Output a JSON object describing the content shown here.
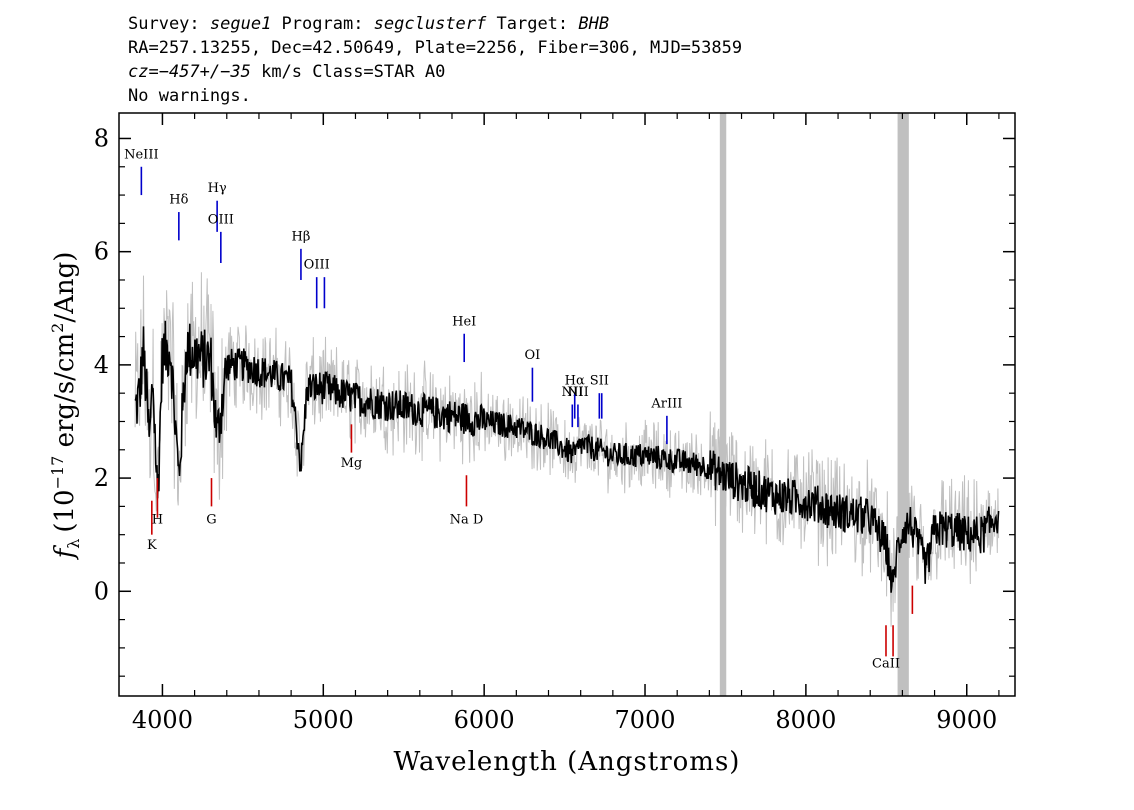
{
  "header": {
    "line1": {
      "survey_label": "Survey: ",
      "survey": "segue1",
      "program_label": " Program: ",
      "program": "segclusterf",
      "target_label": " Target: ",
      "target": "BHB"
    },
    "line2": "RA=257.13255, Dec=42.50649, Plate=2256, Fiber=306, MJD=53859",
    "line3": {
      "cz_label": "cz=",
      "cz": "−457+/−35",
      "rest": " km/s Class=STAR A0"
    },
    "line4": "No warnings."
  },
  "chart_data": {
    "type": "line",
    "xlabel": "Wavelength (Angstroms)",
    "ylabel_parts": {
      "f": "f",
      "sub": "λ",
      "pre": "(10",
      "exp1": "−17",
      "mid": " erg/s/cm",
      "exp2": "2",
      "post": "/Ang)"
    },
    "xlim": [
      3730,
      9300
    ],
    "ylim": [
      -1.85,
      8.45
    ],
    "xticks": [
      4000,
      5000,
      6000,
      7000,
      8000,
      9000
    ],
    "yticks": [
      0,
      2,
      4,
      6,
      8
    ],
    "colors": {
      "flux": "#000000",
      "error": "#c0c0c0",
      "emission": "#0000cc",
      "absorption": "#cc0000",
      "masked": "#c0c0c0"
    },
    "masked_regions": [
      [
        7465,
        7505
      ],
      [
        8570,
        8640
      ]
    ],
    "series": [
      {
        "x": [
          3830,
          3860,
          3880,
          3900,
          3920,
          3940,
          3970,
          4000,
          4050,
          4101,
          4150,
          4200,
          4250,
          4300,
          4340,
          4400,
          4500,
          4600,
          4700,
          4800,
          4861,
          4900,
          5000,
          5100,
          5200,
          5400,
          5600,
          5800,
          6000,
          6200,
          6400,
          6563,
          6600,
          6700,
          6800,
          7000,
          7200,
          7400,
          7450,
          7600,
          7800,
          8000,
          8200,
          8400,
          8500,
          8542,
          8560,
          8600,
          8650,
          8700,
          8750,
          8800,
          8900,
          9000,
          9100,
          9200
        ],
        "y": [
          3.2,
          3.5,
          4.3,
          3.5,
          2.6,
          3.8,
          1.6,
          4.2,
          4.3,
          2.0,
          4.3,
          4.2,
          4.1,
          4.1,
          2.7,
          4.0,
          4.0,
          3.9,
          3.8,
          3.7,
          2.2,
          3.6,
          3.6,
          3.5,
          3.4,
          3.3,
          3.2,
          3.1,
          3.0,
          2.9,
          2.7,
          2.4,
          2.6,
          2.5,
          2.4,
          2.4,
          2.3,
          2.2,
          2.1,
          1.9,
          1.7,
          1.6,
          1.4,
          1.3,
          0.8,
          0.0,
          0.6,
          1.1,
          1.2,
          0.8,
          0.4,
          1.1,
          1.1,
          1.0,
          1.0,
          1.4
        ]
      }
    ],
    "line_labels": [
      {
        "label": "NeIII",
        "x": 3869,
        "y0": 7.0,
        "y1": 7.5,
        "kind": "emission",
        "text_y": 7.65
      },
      {
        "label": "Hδ",
        "x": 4102,
        "y0": 6.2,
        "y1": 6.7,
        "kind": "emission",
        "text_y": 6.85
      },
      {
        "label": "Hγ",
        "x": 4340,
        "y0": 6.35,
        "y1": 6.9,
        "kind": "emission",
        "text_y": 7.05
      },
      {
        "label": "OIII",
        "x": 4363,
        "y0": 5.8,
        "y1": 6.35,
        "kind": "emission",
        "text_y": 6.5
      },
      {
        "label": "Hβ",
        "x": 4861,
        "y0": 5.5,
        "y1": 6.05,
        "kind": "emission",
        "text_y": 6.2
      },
      {
        "label": "OIII",
        "x": 4959,
        "y0": 5.0,
        "y1": 5.55,
        "kind": "emission",
        "text_y": 5.7
      },
      {
        "label": "",
        "x": 5007,
        "y0": 5.0,
        "y1": 5.55,
        "kind": "emission",
        "text_y": 0
      },
      {
        "label": "HeI",
        "x": 5876,
        "y0": 4.05,
        "y1": 4.55,
        "kind": "emission",
        "text_y": 4.7
      },
      {
        "label": "OI",
        "x": 6300,
        "y0": 3.35,
        "y1": 3.95,
        "kind": "emission",
        "text_y": 4.1
      },
      {
        "label": "NII",
        "x": 6548,
        "y0": 2.9,
        "y1": 3.3,
        "kind": "emission",
        "text_y": 3.45
      },
      {
        "label": "Hα",
        "x": 6563,
        "y0": 3.05,
        "y1": 3.5,
        "kind": "emission",
        "text_y": 3.65
      },
      {
        "label": "NII",
        "x": 6583,
        "y0": 2.9,
        "y1": 3.3,
        "kind": "emission",
        "text_y": 3.45
      },
      {
        "label": "SII",
        "x": 6716,
        "y0": 3.05,
        "y1": 3.5,
        "kind": "emission",
        "text_y": 3.65
      },
      {
        "label": "",
        "x": 6731,
        "y0": 3.05,
        "y1": 3.5,
        "kind": "emission",
        "text_y": 0
      },
      {
        "label": "ArIII",
        "x": 7136,
        "y0": 2.6,
        "y1": 3.1,
        "kind": "emission",
        "text_y": 3.25
      },
      {
        "label": "K",
        "x": 3934,
        "y0": 1.0,
        "y1": 1.6,
        "kind": "absorption",
        "text_y": 0.75
      },
      {
        "label": "H",
        "x": 3969,
        "y0": 1.3,
        "y1": 2.0,
        "kind": "absorption",
        "text_y": 1.2
      },
      {
        "label": "G",
        "x": 4305,
        "y0": 1.5,
        "y1": 2.0,
        "kind": "absorption",
        "text_y": 1.2
      },
      {
        "label": "Mg",
        "x": 5175,
        "y0": 2.45,
        "y1": 2.95,
        "kind": "absorption",
        "text_y": 2.2
      },
      {
        "label": "Na  D",
        "x": 5890,
        "y0": 1.5,
        "y1": 2.05,
        "kind": "absorption",
        "text_y": 1.2
      },
      {
        "label": "CaII",
        "x": 8498,
        "y0": -1.15,
        "y1": -0.6,
        "kind": "absorption",
        "text_y": -1.35
      },
      {
        "label": "",
        "x": 8542,
        "y0": -1.15,
        "y1": -0.6,
        "kind": "absorption",
        "text_y": 0
      },
      {
        "label": "",
        "x": 8662,
        "y0": -0.4,
        "y1": 0.1,
        "kind": "absorption",
        "text_y": 0
      }
    ]
  }
}
